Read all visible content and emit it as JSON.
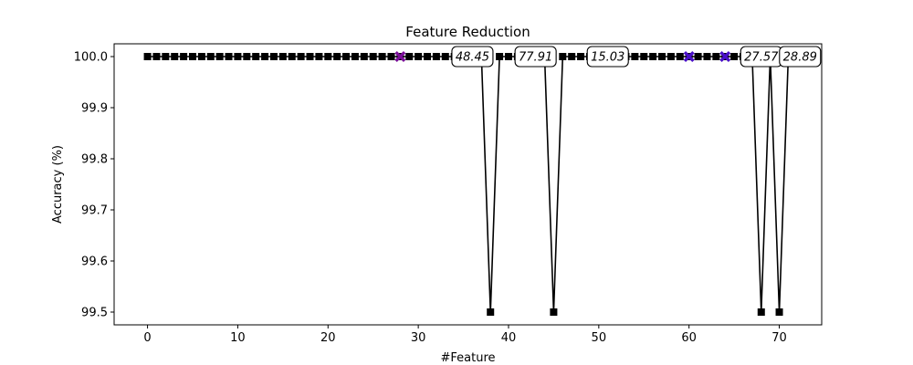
{
  "chart_data": {
    "type": "line",
    "title": "Feature Reduction",
    "xlabel": "#Feature",
    "ylabel": "Accuracy (%)",
    "xlim": [
      -3.7,
      74.7
    ],
    "ylim": [
      99.475,
      100.025
    ],
    "x_ticks": [
      0,
      10,
      20,
      30,
      40,
      50,
      60,
      70
    ],
    "y_ticks": [
      99.5,
      99.6,
      99.7,
      99.8,
      99.9,
      100.0
    ],
    "y_tick_labels": [
      "99.5",
      "99.6",
      "99.7",
      "99.8",
      "99.9",
      "100.0"
    ],
    "grid": false,
    "series": [
      {
        "color": "#000000",
        "marker": "square",
        "x": [
          0,
          1,
          2,
          3,
          4,
          5,
          6,
          7,
          8,
          9,
          10,
          11,
          12,
          13,
          14,
          15,
          16,
          17,
          18,
          19,
          20,
          21,
          22,
          23,
          24,
          25,
          26,
          27,
          28,
          29,
          30,
          31,
          32,
          33,
          34,
          35,
          36,
          37,
          38,
          39,
          40,
          41,
          42,
          43,
          44,
          45,
          46,
          47,
          48,
          49,
          50,
          51,
          52,
          53,
          54,
          55,
          56,
          57,
          58,
          59,
          60,
          61,
          62,
          63,
          64,
          65,
          66,
          67,
          68,
          69,
          70,
          71
        ],
        "y": [
          100,
          100,
          100,
          100,
          100,
          100,
          100,
          100,
          100,
          100,
          100,
          100,
          100,
          100,
          100,
          100,
          100,
          100,
          100,
          100,
          100,
          100,
          100,
          100,
          100,
          100,
          100,
          100,
          100,
          100,
          100,
          100,
          100,
          100,
          100,
          100,
          100,
          100,
          99.5,
          100,
          100,
          100,
          100,
          100,
          100,
          99.5,
          100,
          100,
          100,
          100,
          100,
          100,
          100,
          100,
          100,
          100,
          100,
          100,
          100,
          100,
          100,
          100,
          100,
          100,
          100,
          100,
          100,
          100,
          99.5,
          100,
          99.5,
          100
        ]
      }
    ],
    "highlight_markers": [
      {
        "x": 28,
        "y": 100,
        "color": "#7b0f99",
        "marker": "x"
      },
      {
        "x": 60,
        "y": 100,
        "color": "#4a10c8",
        "marker": "x"
      },
      {
        "x": 64,
        "y": 100,
        "color": "#4a10c8",
        "marker": "x"
      }
    ],
    "annotations": [
      {
        "text": "48.45",
        "x": 36,
        "y": 100
      },
      {
        "text": "77.91",
        "x": 43,
        "y": 100
      },
      {
        "text": "15.03",
        "x": 51,
        "y": 100
      },
      {
        "text": "27.57",
        "x": 68,
        "y": 100
      },
      {
        "text": "28.89",
        "x": 72.3,
        "y": 100
      }
    ]
  }
}
